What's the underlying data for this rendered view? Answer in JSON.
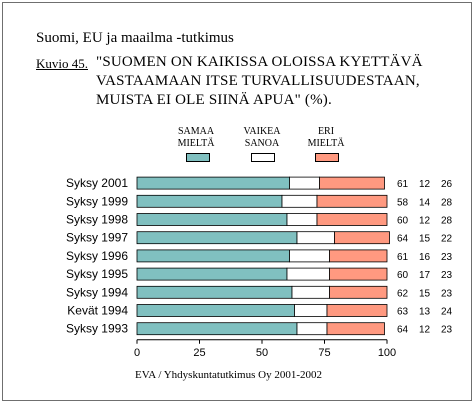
{
  "header": {
    "title": "Suomi, EU ja maailma -tutkimus"
  },
  "figure": {
    "label": "Kuvio 45.",
    "question_lines": [
      "\"SUOMEN ON KAIKISSA OLOISSA KYETTÄVÄ",
      "VASTAAMAAN ITSE TURVALLISUUDESTAAN,",
      "MUISTA EI OLE SIINÄ APUA\" (%)."
    ]
  },
  "legend": [
    {
      "line1": "SAMAA",
      "line2": "MIELTÄ",
      "color": "#80c0c0"
    },
    {
      "line1": "VAIKEA",
      "line2": "SANOA",
      "color": "#ffffff"
    },
    {
      "line1": "ERI",
      "line2": "MIELTÄ",
      "color": "#ff9980"
    }
  ],
  "source": "EVA / Yhdyskuntatutkimus Oy 2001-2002",
  "chart_data": {
    "type": "bar",
    "orientation": "horizontal",
    "stacked": true,
    "categories": [
      "Syksy 2001",
      "Syksy 1999",
      "Syksy 1998",
      "Syksy 1997",
      "Syksy 1996",
      "Syksy 1995",
      "Syksy 1994",
      "Kevät 1994",
      "Syksy 1993"
    ],
    "series": [
      {
        "name": "SAMAA MIELTÄ",
        "color": "#80c0c0",
        "values": [
          61,
          58,
          60,
          64,
          61,
          60,
          62,
          63,
          64
        ]
      },
      {
        "name": "VAIKEA SANOA",
        "color": "#ffffff",
        "values": [
          12,
          14,
          12,
          15,
          16,
          17,
          15,
          13,
          12
        ]
      },
      {
        "name": "ERI MIELTÄ",
        "color": "#ff9980",
        "values": [
          26,
          28,
          28,
          22,
          23,
          23,
          23,
          24,
          23
        ]
      }
    ],
    "xlim": [
      0,
      100
    ],
    "xticks": [
      0,
      25,
      50,
      75,
      100
    ],
    "legend_position": "top",
    "grid": false
  }
}
